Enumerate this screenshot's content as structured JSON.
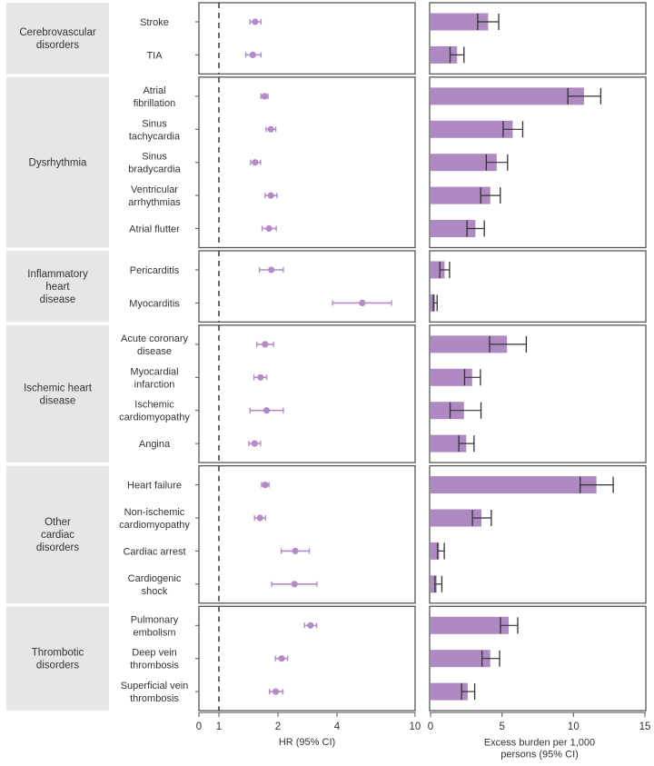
{
  "chart_data": {
    "type": "forest-and-bar",
    "colors": {
      "marker": "#b48bc7",
      "bar": "#ae89c2",
      "group_bg": "#e6e6e6",
      "panel_border": "#555555",
      "error_bar": "#333333",
      "ref_line": "#444444"
    },
    "groups": [
      {
        "name": "Cerebrovascular\ndisorders",
        "outcomes": [
          {
            "label": "Stroke",
            "hr": 1.53,
            "hr_lo": 1.44,
            "hr_hi": 1.64,
            "burden": 4.03,
            "burden_lo": 3.3,
            "burden_hi": 4.77
          },
          {
            "label": "TIA",
            "hr": 1.49,
            "hr_lo": 1.37,
            "hr_hi": 1.64,
            "burden": 1.86,
            "burden_lo": 1.37,
            "burden_hi": 2.34
          }
        ]
      },
      {
        "name": "Dysrhythmia",
        "outcomes": [
          {
            "label": "Atrial\nfibrillation",
            "hr": 1.71,
            "hr_lo": 1.64,
            "hr_hi": 1.78,
            "burden": 10.74,
            "burden_lo": 9.61,
            "burden_hi": 11.91
          },
          {
            "label": "Sinus\ntachycardia",
            "hr": 1.84,
            "hr_lo": 1.74,
            "hr_hi": 1.95,
            "burden": 5.75,
            "burden_lo": 5.08,
            "burden_hi": 6.45
          },
          {
            "label": "Sinus\nbradycardia",
            "hr": 1.53,
            "hr_lo": 1.45,
            "hr_hi": 1.63,
            "burden": 4.63,
            "burden_lo": 3.9,
            "burden_hi": 5.39
          },
          {
            "label": "Ventricular\narrhythmias",
            "hr": 1.84,
            "hr_lo": 1.72,
            "hr_hi": 1.98,
            "burden": 4.18,
            "burden_lo": 3.51,
            "burden_hi": 4.88
          },
          {
            "label": "Atrial flutter",
            "hr": 1.8,
            "hr_lo": 1.66,
            "hr_hi": 1.96,
            "burden": 3.14,
            "burden_lo": 2.55,
            "burden_hi": 3.76
          }
        ]
      },
      {
        "name": "Inflammatory\nheart\ndisease",
        "outcomes": [
          {
            "label": "Pericarditis",
            "hr": 1.85,
            "hr_lo": 1.61,
            "hr_hi": 2.13,
            "burden": 0.98,
            "burden_lo": 0.65,
            "burden_hi": 1.33
          },
          {
            "label": "Myocarditis",
            "hr": 5.38,
            "hr_lo": 3.8,
            "hr_hi": 7.59,
            "burden": 0.31,
            "burden_lo": 0.2,
            "burden_hi": 0.46
          }
        ]
      },
      {
        "name": "Ischemic heart\ndisease",
        "outcomes": [
          {
            "label": "Acute coronary\ndisease",
            "hr": 1.72,
            "hr_lo": 1.56,
            "hr_hi": 1.9,
            "burden": 5.35,
            "burden_lo": 4.13,
            "burden_hi": 6.7
          },
          {
            "label": "Myocardial\ninfarction",
            "hr": 1.63,
            "hr_lo": 1.51,
            "hr_hi": 1.75,
            "burden": 2.91,
            "burden_lo": 2.38,
            "burden_hi": 3.49
          },
          {
            "label": "Ischemic\ncardiomyopathy",
            "hr": 1.75,
            "hr_lo": 1.44,
            "hr_hi": 2.13,
            "burden": 2.34,
            "burden_lo": 1.37,
            "burden_hi": 3.53
          },
          {
            "label": "Angina",
            "hr": 1.52,
            "hr_lo": 1.42,
            "hr_hi": 1.63,
            "burden": 2.5,
            "burden_lo": 1.98,
            "burden_hi": 3.04
          }
        ]
      },
      {
        "name": "Other\ncardiac\ndisorders",
        "outcomes": [
          {
            "label": "Heart failure",
            "hr": 1.72,
            "hr_lo": 1.65,
            "hr_hi": 1.8,
            "burden": 11.61,
            "burden_lo": 10.47,
            "burden_hi": 12.78
          },
          {
            "label": "Non-ischemic\ncardiomyopathy",
            "hr": 1.62,
            "hr_lo": 1.52,
            "hr_hi": 1.73,
            "burden": 3.56,
            "burden_lo": 2.93,
            "burden_hi": 4.25
          },
          {
            "label": "Cardiac arrest",
            "hr": 2.45,
            "hr_lo": 2.08,
            "hr_hi": 2.89,
            "burden": 0.6,
            "burden_lo": 0.49,
            "burden_hi": 0.96
          },
          {
            "label": "Cardiogenic\nshock",
            "hr": 2.43,
            "hr_lo": 1.86,
            "hr_hi": 3.16,
            "burden": 0.43,
            "burden_lo": 0.31,
            "burden_hi": 0.79
          }
        ]
      },
      {
        "name": "Thrombotic\ndisorders",
        "outcomes": [
          {
            "label": "Pulmonary\nembolism",
            "hr": 2.93,
            "hr_lo": 2.73,
            "hr_hi": 3.15,
            "burden": 5.47,
            "burden_lo": 4.89,
            "burden_hi": 6.1
          },
          {
            "label": "Deep vein\nthrombosis",
            "hr": 2.09,
            "hr_lo": 1.94,
            "hr_hi": 2.24,
            "burden": 4.18,
            "burden_lo": 3.6,
            "burden_hi": 4.83
          },
          {
            "label": "Superficial vein\nthrombosis",
            "hr": 1.95,
            "hr_lo": 1.81,
            "hr_hi": 2.12,
            "burden": 2.6,
            "burden_lo": 2.17,
            "burden_hi": 3.09
          }
        ]
      }
    ],
    "hr_axis": {
      "title": "HR (95% CI)",
      "scale": "log2",
      "reference_line": 1,
      "ticks": [
        {
          "value": 0,
          "label": "0"
        },
        {
          "value": 1,
          "label": "1"
        },
        {
          "value": 2,
          "label": "2"
        },
        {
          "value": 4,
          "label": "4"
        },
        {
          "value": 10,
          "label": "10"
        }
      ],
      "range": [
        0,
        10
      ]
    },
    "burden_axis": {
      "title": "Excess burden per 1,000\npersons (95% CI)",
      "scale": "linear",
      "ticks": [
        {
          "value": 0,
          "label": "0"
        },
        {
          "value": 5,
          "label": "5"
        },
        {
          "value": 10,
          "label": "10"
        },
        {
          "value": 15,
          "label": "15"
        }
      ],
      "range": [
        0,
        15
      ]
    }
  }
}
